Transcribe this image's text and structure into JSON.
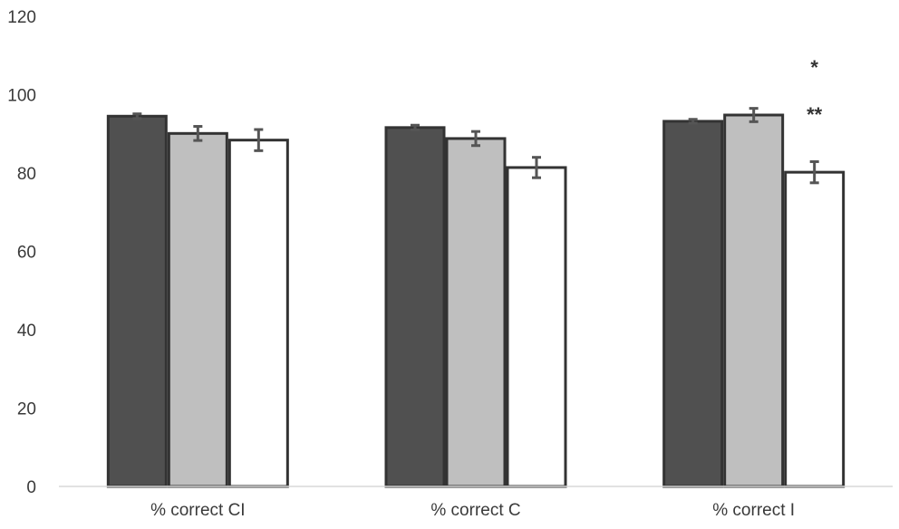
{
  "chart_data": {
    "type": "bar",
    "categories": [
      "% correct CI",
      "% correct C",
      "% correct I"
    ],
    "series": [
      {
        "values": [
          94.5,
          91.6,
          93.2
        ],
        "errors": [
          0.6,
          0.6,
          0.5
        ],
        "color": "#505050"
      },
      {
        "values": [
          90.1,
          88.8,
          94.8
        ],
        "errors": [
          1.8,
          1.8,
          1.7
        ],
        "color": "#bfbfbf"
      },
      {
        "values": [
          88.4,
          81.4,
          80.2
        ],
        "errors": [
          2.7,
          2.6,
          2.7
        ],
        "color": "#ffffff"
      }
    ],
    "ylim": [
      0,
      120
    ],
    "yticks": [
      0,
      20,
      40,
      60,
      80,
      100,
      120
    ],
    "grid": false,
    "annotations": [
      {
        "text": "*",
        "category": 2,
        "y": 107
      },
      {
        "text": "**",
        "category": 2,
        "y": 95
      }
    ]
  }
}
